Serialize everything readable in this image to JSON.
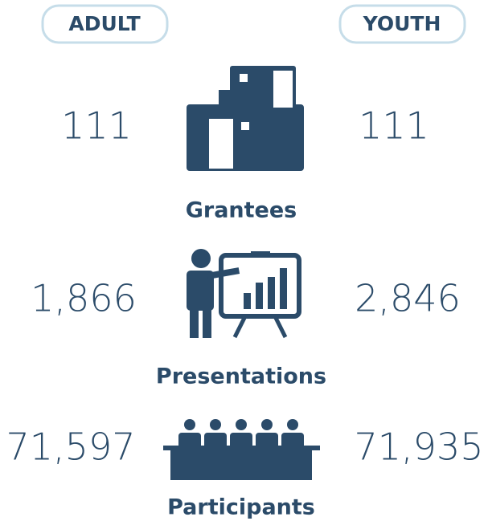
{
  "header": {
    "left": "ADULT",
    "right": "YOUTH"
  },
  "rows": [
    {
      "label": "Grantees",
      "adult": "111",
      "youth": "111"
    },
    {
      "label": "Presentations",
      "adult": "1,866",
      "youth": "2,846"
    },
    {
      "label": "Participants",
      "adult": "71,597",
      "youth": "71,935"
    }
  ]
}
